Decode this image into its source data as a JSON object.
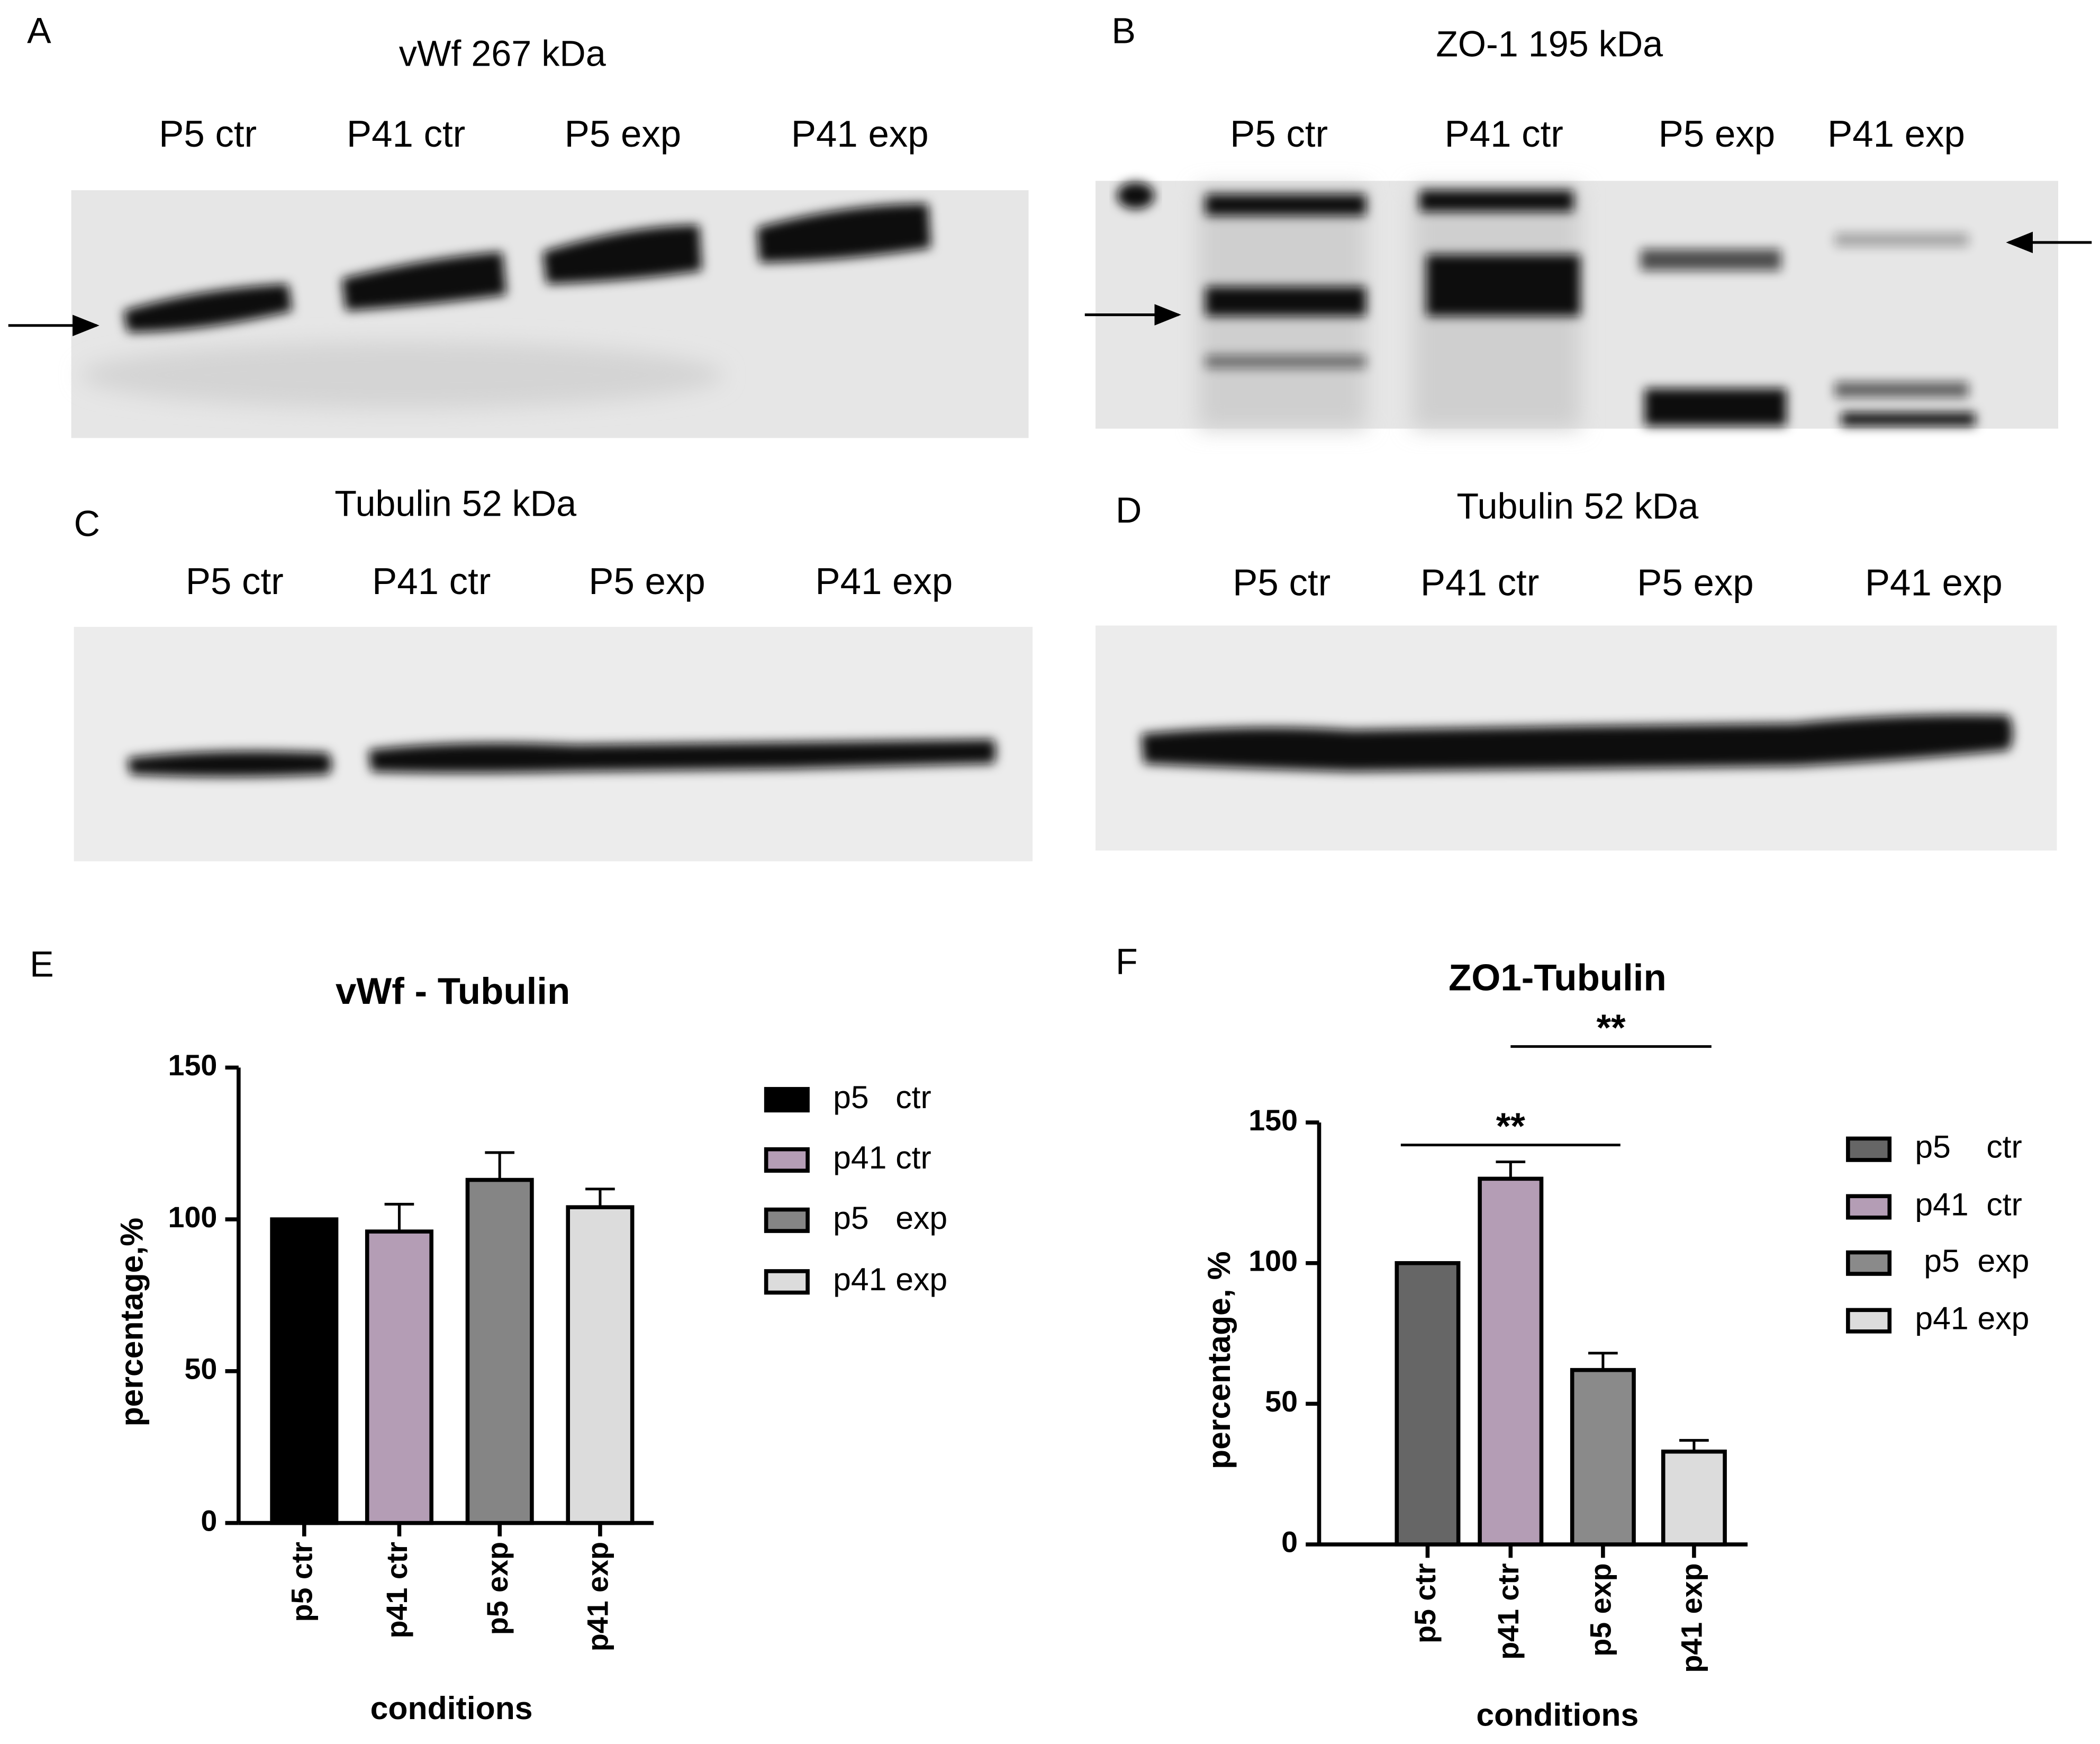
{
  "blots": [
    {
      "label": "A",
      "title": "vWf 267 kDa",
      "lanes": [
        "P5 ctr",
        "P41 ctr",
        "P5 exp",
        "P41 exp"
      ]
    },
    {
      "label": "B",
      "title": "ZO-1 195 kDa",
      "lanes": [
        "P5 ctr",
        "P41 ctr",
        "P5 exp",
        "P41 exp"
      ]
    },
    {
      "label": "C",
      "title": "Tubulin 52 kDa",
      "lanes": [
        "P5 ctr",
        "P41 ctr",
        "P5 exp",
        "P41 exp"
      ]
    },
    {
      "label": "D",
      "title": "Tubulin 52 kDa",
      "lanes": [
        "P5 ctr",
        "P41 ctr",
        "P5 exp",
        "P41 exp"
      ]
    }
  ],
  "chart_data": [
    {
      "type": "bar",
      "panel_label": "E",
      "title": "vWf - Tubulin",
      "categories": [
        "p5 ctr",
        "p41 ctr",
        "p5 exp",
        "p41 exp"
      ],
      "values": [
        100,
        96,
        113,
        104
      ],
      "errors": [
        null,
        9,
        9,
        6
      ],
      "colors": [
        "#000000",
        "#b49db5",
        "#858585",
        "#dcdcdc"
      ],
      "legend": [
        "p5   ctr",
        "p41 ctr",
        "p5   exp",
        "p41 exp"
      ],
      "x_label": "conditions",
      "y_label": "percentage,%",
      "ylim": [
        0,
        150
      ],
      "yticks": [
        0,
        50,
        100,
        150
      ]
    },
    {
      "type": "bar",
      "panel_label": "F",
      "title": "ZO1-Tubulin",
      "categories": [
        "p5 ctr",
        "p41 ctr",
        "p5 exp",
        "p41 exp"
      ],
      "values": [
        100,
        130,
        62,
        33
      ],
      "errors": [
        null,
        6,
        6,
        4
      ],
      "colors": [
        "#666666",
        "#b49db5",
        "#8a8a8a",
        "#dcdcdc"
      ],
      "legend": [
        "p5    ctr",
        "p41  ctr",
        " p5  exp",
        "p41 exp"
      ],
      "x_label": "conditions",
      "y_label": "percentage, %",
      "ylim": [
        0,
        150
      ],
      "yticks": [
        0,
        50,
        100,
        150
      ],
      "significance": [
        {
          "text": "**",
          "from": 0,
          "to": 2,
          "y": 142
        },
        {
          "text": "**",
          "from": 1,
          "to": 3,
          "y": 177
        }
      ]
    }
  ]
}
